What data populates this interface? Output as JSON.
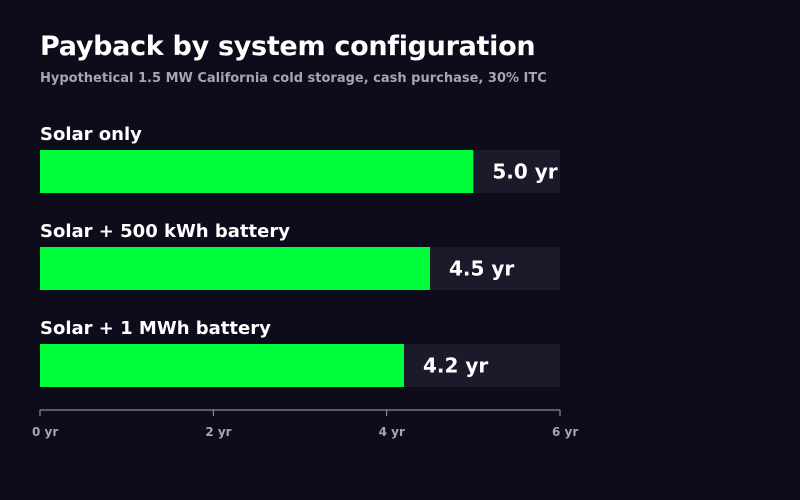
{
  "title": "Payback by system configuration",
  "subtitle": "Hypothetical 1.5 MW California cold storage, cash purchase, 30% ITC",
  "colors": {
    "background": "#0d0c1a",
    "bar": "#00ff3a",
    "track": "#1b1a2b",
    "text": "#ffffff",
    "muted": "#a5a4b8"
  },
  "chart_data": {
    "type": "bar",
    "orientation": "horizontal",
    "categories": [
      "Solar only",
      "Solar + 500 kWh battery",
      "Solar + 1 MWh battery"
    ],
    "values": [
      5.0,
      4.5,
      4.2
    ],
    "value_labels": [
      "5.0 yr",
      "4.5 yr",
      "4.2 yr"
    ],
    "unit": "yr",
    "xlim": [
      0,
      6
    ],
    "ticks": [
      0,
      2,
      4,
      6
    ],
    "tick_labels": [
      "0 yr",
      "2 yr",
      "4 yr",
      "6 yr"
    ],
    "grid": false,
    "legend": "none"
  }
}
